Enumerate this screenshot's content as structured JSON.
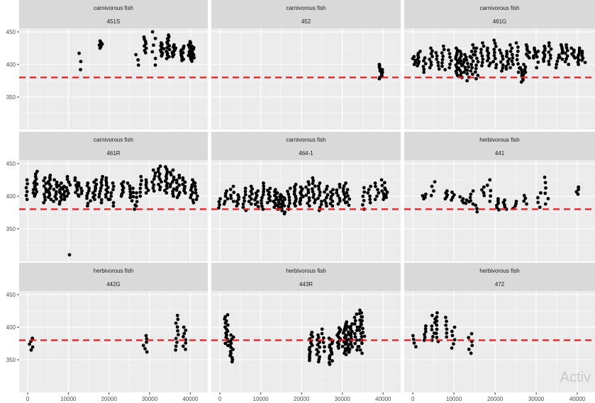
{
  "chart_data": {
    "type": "scatter",
    "layout": "facet_wrap 3x3",
    "xlim": [
      -2100,
      44300
    ],
    "ylim": [
      300,
      455.4
    ],
    "x_ticks": [
      0,
      10000,
      20000,
      30000,
      40000
    ],
    "x_tick_labels": [
      "0",
      "10000",
      "20000",
      "30000",
      "40000"
    ],
    "y_ticks": [
      350,
      400,
      450
    ],
    "y_tick_labels": [
      "350",
      "400",
      "450"
    ],
    "reference_line": {
      "y": 380,
      "style": "dashed",
      "color": "#E41A1C"
    },
    "point_color": "#000000",
    "panel_bg": "#EBEBEB",
    "strip_bg": "#D9D9D9",
    "cluster_format": "[x, y_min, y_max, point_count]",
    "panels": [
      {
        "group": "carnivorous fish",
        "id": "451S",
        "clusters": [
          [
            13000,
            392,
            417,
            3
          ],
          [
            18000,
            425,
            436,
            8
          ],
          [
            27000,
            399,
            415,
            3
          ],
          [
            29000,
            418,
            442,
            8
          ],
          [
            31000,
            399,
            450,
            6
          ],
          [
            33000,
            413,
            433,
            10
          ],
          [
            34500,
            409,
            445,
            14
          ],
          [
            36000,
            412,
            430,
            12
          ],
          [
            38000,
            406,
            428,
            12
          ],
          [
            40000,
            405,
            435,
            18
          ],
          [
            40500,
            408,
            428,
            10
          ]
        ]
      },
      {
        "group": "carnivorous fish",
        "id": "452",
        "clusters": [
          [
            39500,
            378,
            400,
            12
          ]
        ]
      },
      {
        "group": "carnivorous fish",
        "id": "461G",
        "clusters": [
          [
            300,
            400,
            412,
            5
          ],
          [
            1500,
            398,
            420,
            8
          ],
          [
            3000,
            388,
            410,
            6
          ],
          [
            4500,
            395,
            425,
            8
          ],
          [
            6000,
            393,
            418,
            6
          ],
          [
            7500,
            392,
            428,
            8
          ],
          [
            9000,
            395,
            422,
            6
          ],
          [
            10500,
            383,
            425,
            14
          ],
          [
            11500,
            380,
            420,
            12
          ],
          [
            12500,
            388,
            415,
            8
          ],
          [
            13500,
            375,
            412,
            8
          ],
          [
            14500,
            385,
            430,
            10
          ],
          [
            15500,
            378,
            425,
            10
          ],
          [
            17000,
            398,
            433,
            8
          ],
          [
            18500,
            398,
            425,
            8
          ],
          [
            20000,
            395,
            437,
            10
          ],
          [
            21500,
            390,
            422,
            8
          ],
          [
            23000,
            393,
            420,
            8
          ],
          [
            24000,
            395,
            430,
            8
          ],
          [
            25500,
            388,
            433,
            8
          ],
          [
            26500,
            373,
            395,
            8
          ],
          [
            27000,
            380,
            400,
            6
          ],
          [
            28000,
            410,
            430,
            8
          ],
          [
            29500,
            410,
            425,
            6
          ],
          [
            30500,
            395,
            420,
            4
          ],
          [
            32000,
            405,
            428,
            8
          ],
          [
            33500,
            400,
            433,
            8
          ],
          [
            35000,
            395,
            410,
            4
          ],
          [
            36000,
            408,
            430,
            8
          ],
          [
            37500,
            400,
            430,
            8
          ],
          [
            39000,
            410,
            425,
            6
          ],
          [
            40500,
            400,
            425,
            8
          ],
          [
            41500,
            403,
            420,
            6
          ]
        ]
      },
      {
        "group": "carnivorous fish",
        "id": "461R",
        "clusters": [
          [
            0,
            395,
            425,
            6
          ],
          [
            1400,
            400,
            420,
            5
          ],
          [
            2000,
            403,
            438,
            10
          ],
          [
            4300,
            390,
            428,
            10
          ],
          [
            5500,
            395,
            432,
            12
          ],
          [
            6800,
            392,
            425,
            10
          ],
          [
            8000,
            388,
            420,
            10
          ],
          [
            9000,
            395,
            415,
            6
          ],
          [
            10400,
            310,
            310,
            1
          ],
          [
            10000,
            400,
            430,
            8
          ],
          [
            12000,
            402,
            428,
            8
          ],
          [
            13000,
            400,
            420,
            6
          ],
          [
            15000,
            385,
            420,
            10
          ],
          [
            16500,
            395,
            425,
            10
          ],
          [
            18000,
            390,
            430,
            10
          ],
          [
            19500,
            395,
            428,
            10
          ],
          [
            20700,
            385,
            420,
            8
          ],
          [
            23300,
            400,
            422,
            8
          ],
          [
            25000,
            398,
            420,
            6
          ],
          [
            26000,
            380,
            412,
            6
          ],
          [
            27000,
            385,
            405,
            4
          ],
          [
            28000,
            400,
            430,
            6
          ],
          [
            29500,
            405,
            425,
            6
          ],
          [
            31000,
            408,
            440,
            8
          ],
          [
            32500,
            410,
            446,
            10
          ],
          [
            34000,
            405,
            445,
            12
          ],
          [
            35500,
            400,
            440,
            12
          ],
          [
            37000,
            398,
            432,
            10
          ],
          [
            38500,
            405,
            428,
            8
          ],
          [
            40500,
            390,
            425,
            10
          ],
          [
            41500,
            395,
            420,
            6
          ]
        ]
      },
      {
        "group": "carnivorous fish",
        "id": "464-1",
        "clusters": [
          [
            0,
            382,
            396,
            4
          ],
          [
            1500,
            388,
            408,
            6
          ],
          [
            3000,
            392,
            415,
            6
          ],
          [
            4500,
            385,
            402,
            6
          ],
          [
            6000,
            378,
            412,
            8
          ],
          [
            7500,
            388,
            415,
            8
          ],
          [
            9000,
            384,
            408,
            8
          ],
          [
            10500,
            380,
            420,
            10
          ],
          [
            12000,
            390,
            412,
            8
          ],
          [
            13500,
            383,
            410,
            10
          ],
          [
            14500,
            380,
            405,
            10
          ],
          [
            15500,
            373,
            400,
            12
          ],
          [
            17000,
            380,
            412,
            8
          ],
          [
            18500,
            385,
            418,
            10
          ],
          [
            20000,
            388,
            414,
            10
          ],
          [
            21500,
            385,
            422,
            10
          ],
          [
            23000,
            390,
            428,
            10
          ],
          [
            24500,
            378,
            420,
            10
          ],
          [
            26000,
            385,
            415,
            8
          ],
          [
            27500,
            385,
            410,
            8
          ],
          [
            29000,
            388,
            418,
            8
          ],
          [
            30500,
            390,
            420,
            8
          ],
          [
            31500,
            386,
            410,
            6
          ],
          [
            35000,
            380,
            413,
            6
          ],
          [
            36500,
            390,
            415,
            6
          ],
          [
            38500,
            395,
            420,
            6
          ],
          [
            40000,
            395,
            425,
            8
          ],
          [
            41000,
            398,
            410,
            4
          ]
        ]
      },
      {
        "group": "herbivorous fish",
        "id": "441",
        "clusters": [
          [
            2800,
            396,
            403,
            4
          ],
          [
            4900,
            401,
            422,
            4
          ],
          [
            8000,
            396,
            408,
            5
          ],
          [
            9600,
            394,
            406,
            4
          ],
          [
            11900,
            390,
            399,
            4
          ],
          [
            13300,
            389,
            394,
            3
          ],
          [
            14400,
            388,
            408,
            5
          ],
          [
            15400,
            376,
            386,
            3
          ],
          [
            17000,
            401,
            414,
            4
          ],
          [
            18500,
            392,
            425,
            5
          ],
          [
            20700,
            379,
            396,
            6
          ],
          [
            22400,
            380,
            394,
            5
          ],
          [
            24800,
            381,
            392,
            4
          ],
          [
            27400,
            388,
            401,
            4
          ],
          [
            30800,
            383,
            405,
            4
          ],
          [
            32500,
            388,
            429,
            6
          ],
          [
            40000,
            403,
            414,
            4
          ]
        ]
      },
      {
        "group": "herbivorous fish",
        "id": "442G",
        "clusters": [
          [
            800,
            365,
            383,
            5
          ],
          [
            28900,
            362,
            387,
            6
          ],
          [
            36700,
            365,
            418,
            10
          ],
          [
            38600,
            366,
            400,
            8
          ]
        ]
      },
      {
        "group": "herbivorous fish",
        "id": "443R",
        "clusters": [
          [
            1600,
            372,
            419,
            16
          ],
          [
            2900,
            347,
            388,
            14
          ],
          [
            22300,
            349,
            392,
            14
          ],
          [
            24000,
            347,
            388,
            12
          ],
          [
            25400,
            363,
            397,
            6
          ],
          [
            27200,
            343,
            383,
            16
          ],
          [
            29100,
            368,
            399,
            12
          ],
          [
            30500,
            360,
            405,
            14
          ],
          [
            31300,
            358,
            408,
            14
          ],
          [
            32000,
            362,
            405,
            12
          ],
          [
            33400,
            365,
            420,
            12
          ],
          [
            34500,
            360,
            426,
            14
          ],
          [
            35100,
            380,
            422,
            8
          ]
        ]
      },
      {
        "group": "herbivorous fish",
        "id": "472",
        "clusters": [
          [
            300,
            370,
            387,
            4
          ],
          [
            3000,
            380,
            402,
            6
          ],
          [
            5000,
            380,
            418,
            8
          ],
          [
            6100,
            378,
            422,
            8
          ],
          [
            7800,
            385,
            415,
            6
          ],
          [
            9900,
            368,
            400,
            6
          ],
          [
            14000,
            360,
            390,
            6
          ]
        ]
      }
    ]
  },
  "watermark": "Activ"
}
